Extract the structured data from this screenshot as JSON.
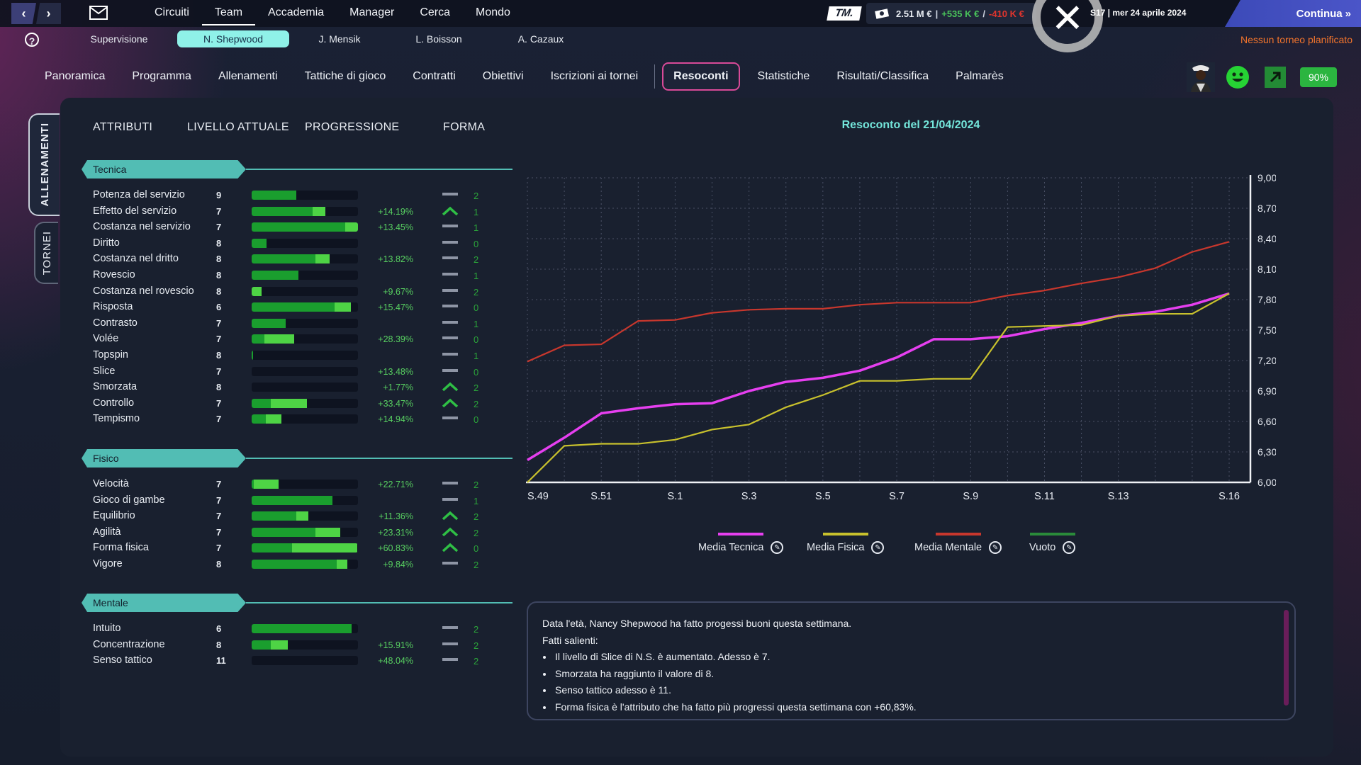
{
  "topbar": {
    "menu": [
      "Circuiti",
      "Team",
      "Accademia",
      "Manager",
      "Cerca",
      "Mondo"
    ],
    "active_menu": "Team",
    "logo": "TM.",
    "money": {
      "balance": "2.51 M €",
      "sep1": "|",
      "income": "+535 K €",
      "sep2": "/",
      "expense": "-410 K €"
    },
    "date": "S17 | mer 24 aprile 2024",
    "continue_label": "Continua"
  },
  "players": {
    "supervision": "Supervisione",
    "items": [
      "N. Shepwood",
      "J. Mensik",
      "L. Boisson",
      "A. Cazaux"
    ],
    "selected": "N. Shepwood"
  },
  "no_tournament": "Nessun torneo planificato",
  "tabs": {
    "items": [
      "Panoramica",
      "Programma",
      "Allenamenti",
      "Tattiche di gioco",
      "Contratti",
      "Obiettivi",
      "Iscrizioni ai tornei",
      "Resoconti",
      "Statistiche",
      "Risultati/Classifica",
      "Palmarès"
    ],
    "active": "Resoconti"
  },
  "status": {
    "morale_icon": "smile-icon",
    "trend_icon": "arrow-up-right-icon",
    "condition": "90%"
  },
  "side_tabs": {
    "active": "ALLENAMENTI",
    "other": "TORNEI"
  },
  "columns": {
    "attributes": "ATTRIBUTI",
    "level": "LIVELLO ATTUALE",
    "progression": "PROGRESSIONE",
    "form": "FORMA"
  },
  "sections": [
    {
      "title": "Tecnica",
      "rows": [
        {
          "name": "Potenza del servizio",
          "level": "9",
          "base": 0.42,
          "gain": 0.0,
          "progress": "",
          "trend": "flat",
          "form": "2"
        },
        {
          "name": "Effetto del servizio",
          "level": "7",
          "base": 0.57,
          "gain": 0.12,
          "progress": "+14.19%",
          "trend": "up",
          "form": "1"
        },
        {
          "name": "Costanza nel servizio",
          "level": "7",
          "base": 0.88,
          "gain": 0.12,
          "progress": "+13.45%",
          "trend": "flat",
          "form": "1"
        },
        {
          "name": "Diritto",
          "level": "8",
          "base": 0.14,
          "gain": 0.0,
          "progress": "",
          "trend": "flat",
          "form": "0"
        },
        {
          "name": "Costanza nel dritto",
          "level": "8",
          "base": 0.6,
          "gain": 0.13,
          "progress": "+13.82%",
          "trend": "flat",
          "form": "2"
        },
        {
          "name": "Rovescio",
          "level": "8",
          "base": 0.44,
          "gain": 0.0,
          "progress": "",
          "trend": "flat",
          "form": "1"
        },
        {
          "name": "Costanza nel rovescio",
          "level": "8",
          "base": 0.0,
          "gain": 0.09,
          "progress": "+9.67%",
          "trend": "flat",
          "form": "2"
        },
        {
          "name": "Risposta",
          "level": "6",
          "base": 0.78,
          "gain": 0.15,
          "progress": "+15.47%",
          "trend": "flat",
          "form": "0"
        },
        {
          "name": "Contrasto",
          "level": "7",
          "base": 0.32,
          "gain": 0.0,
          "progress": "",
          "trend": "flat",
          "form": "1"
        },
        {
          "name": "Volée",
          "level": "7",
          "base": 0.12,
          "gain": 0.28,
          "progress": "+28.39%",
          "trend": "flat",
          "form": "0"
        },
        {
          "name": "Topspin",
          "level": "8",
          "base": 0.01,
          "gain": 0.0,
          "progress": "",
          "trend": "flat",
          "form": "1"
        },
        {
          "name": "Slice",
          "level": "7",
          "base": 0.0,
          "gain": 0.0,
          "progress": "+13.48%",
          "trend": "flat",
          "form": "0"
        },
        {
          "name": "Smorzata",
          "level": "8",
          "base": 0.0,
          "gain": 0.0,
          "progress": "+1.77%",
          "trend": "up",
          "form": "2"
        },
        {
          "name": "Controllo",
          "level": "7",
          "base": 0.18,
          "gain": 0.34,
          "progress": "+33.47%",
          "trend": "up",
          "form": "2"
        },
        {
          "name": "Tempismo",
          "level": "7",
          "base": 0.13,
          "gain": 0.15,
          "progress": "+14.94%",
          "trend": "flat",
          "form": "0"
        }
      ]
    },
    {
      "title": "Fisico",
      "rows": [
        {
          "name": "Velocità",
          "level": "7",
          "base": 0.02,
          "gain": 0.23,
          "progress": "+22.71%",
          "trend": "flat",
          "form": "2"
        },
        {
          "name": "Gioco di gambe",
          "level": "7",
          "base": 0.76,
          "gain": 0.0,
          "progress": "",
          "trend": "flat",
          "form": "1"
        },
        {
          "name": "Equilibrio",
          "level": "7",
          "base": 0.42,
          "gain": 0.11,
          "progress": "+11.36%",
          "trend": "up",
          "form": "2"
        },
        {
          "name": "Agilità",
          "level": "7",
          "base": 0.6,
          "gain": 0.23,
          "progress": "+23.31%",
          "trend": "up",
          "form": "2"
        },
        {
          "name": "Forma fisica",
          "level": "7",
          "base": 0.38,
          "gain": 0.61,
          "progress": "+60.83%",
          "trend": "up",
          "form": "0"
        },
        {
          "name": "Vigore",
          "level": "8",
          "base": 0.8,
          "gain": 0.1,
          "progress": "+9.84%",
          "trend": "flat",
          "form": "2"
        }
      ]
    },
    {
      "title": "Mentale",
      "rows": [
        {
          "name": "Intuito",
          "level": "6",
          "base": 0.94,
          "gain": 0.0,
          "progress": "",
          "trend": "flat",
          "form": "2"
        },
        {
          "name": "Concentrazione",
          "level": "8",
          "base": 0.18,
          "gain": 0.16,
          "progress": "+15.91%",
          "trend": "flat",
          "form": "2"
        },
        {
          "name": "Senso tattico",
          "level": "11",
          "base": 0.0,
          "gain": 0.0,
          "progress": "+48.04%",
          "trend": "flat",
          "form": "2"
        }
      ]
    }
  ],
  "chart_data": {
    "type": "line",
    "title": "Resoconto del 21/04/2024",
    "x_tick_labels": [
      "S.49",
      "S.51",
      "S.1",
      "S.3",
      "S.5",
      "S.7",
      "S.9",
      "S.11",
      "S.13",
      "S.16"
    ],
    "ylim": [
      6.0,
      9.0
    ],
    "y_ticks": [
      "6,00",
      "6,30",
      "6,60",
      "6,90",
      "7,20",
      "7,50",
      "7,80",
      "8,10",
      "8,40",
      "8,70",
      "9,00"
    ],
    "grid": true,
    "legend_position": "bottom",
    "series": [
      {
        "name": "Media Tecnica",
        "color": "#e63ff0",
        "values": [
          6.22,
          6.44,
          6.68,
          6.73,
          6.77,
          6.78,
          6.9,
          6.99,
          7.03,
          7.1,
          7.23,
          7.41,
          7.41,
          7.44,
          7.51,
          7.57,
          7.64,
          7.68,
          7.75,
          7.86
        ]
      },
      {
        "name": "Media Fisica",
        "color": "#c8c12d",
        "values": [
          6.0,
          6.36,
          6.38,
          6.38,
          6.42,
          6.52,
          6.57,
          6.74,
          6.86,
          7.0,
          7.0,
          7.02,
          7.02,
          7.53,
          7.54,
          7.55,
          7.64,
          7.66,
          7.66,
          7.86
        ]
      },
      {
        "name": "Media Mentale",
        "color": "#c8372d",
        "values": [
          7.19,
          7.35,
          7.36,
          7.59,
          7.6,
          7.67,
          7.7,
          7.71,
          7.71,
          7.75,
          7.77,
          7.77,
          7.77,
          7.84,
          7.89,
          7.96,
          8.02,
          8.11,
          8.27,
          8.37
        ]
      },
      {
        "name": "Vuoto",
        "color": "#2a8b3a",
        "values": []
      }
    ]
  },
  "summary": {
    "intro": "Data l'età, Nancy Shepwood ha fatto progessi buoni questa settimana.",
    "heading": "Fatti salienti:",
    "bullets": [
      "Il livello di Slice di N.S. è aumentato. Adesso è 7.",
      "Smorzata ha raggiunto il valore di 8.",
      "Senso tattico adesso è 11.",
      "Forma fisica è l'attributo che ha fatto più progressi questa settimana con +60,83%."
    ]
  }
}
